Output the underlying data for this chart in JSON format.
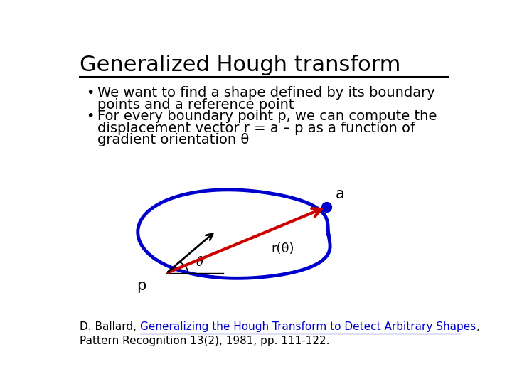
{
  "title": "Generalized Hough transform",
  "bullet1_line1": "We want to find a shape defined by its boundary",
  "bullet1_line2": "points and a reference point",
  "bullet2_line1": "For every boundary point p, we can compute the",
  "bullet2_line2": "displacement vector r = a – p as a function of",
  "bullet2_line3": "gradient orientation θ",
  "ref_pre": "D. Ballard, ",
  "ref_link": "Generalizing the Hough Transform to Detect Arbitrary Shapes",
  "ref_post": ",",
  "ref_line2": "Pattern Recognition 13(2), 1981, pp. 111-122.",
  "shape_color": "#0000cc",
  "shape_linewidth": 3.5,
  "point_a_color": "#0000cc",
  "arrow_r_color": "#cc0000",
  "arrow_grad_color": "#000000",
  "label_a": "a",
  "label_p": "p",
  "label_r": "r(θ)",
  "label_theta": "θ",
  "bg_color": "#ffffff",
  "title_fontsize": 22,
  "body_fontsize": 14,
  "ref_fontsize": 11
}
